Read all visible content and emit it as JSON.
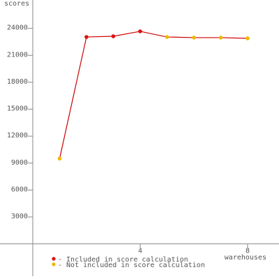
{
  "chart_data": {
    "type": "line",
    "y_label": "scores",
    "x_label": "warehouses",
    "x": [
      1,
      2,
      3,
      4,
      5,
      6,
      7,
      8
    ],
    "values": [
      9500,
      23040,
      23120,
      23670,
      23040,
      22970,
      22970,
      22890
    ],
    "included": [
      false,
      true,
      true,
      true,
      false,
      false,
      false,
      false
    ],
    "line_color": "#cc0000",
    "legend": [
      {
        "name": "- Included in score calculation",
        "color": "#dd1111"
      },
      {
        "name": "- Not included in score calculation",
        "color": "#f0b800"
      }
    ],
    "xlim": [
      -1.22,
      9.17
    ],
    "ylim": [
      -3600,
      27160
    ],
    "xticks": [
      4,
      8
    ],
    "yticks": [
      3000,
      6000,
      9000,
      12000,
      15000,
      18000,
      21000,
      24000
    ]
  }
}
